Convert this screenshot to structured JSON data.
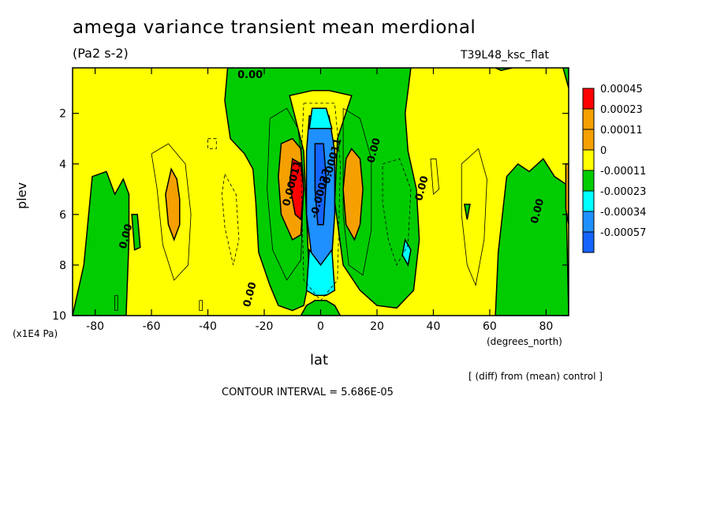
{
  "chart_data": {
    "type": "heatmap",
    "title": "amega variance transient mean merdional",
    "units": "(Pa2 s-2)",
    "run_label": "T39L48_ksc_flat",
    "xlabel": "lat",
    "xunits": "(degrees_north)",
    "ylabel": "plev",
    "yunits": "(x1E4 Pa)",
    "xlim": [
      -88,
      88
    ],
    "ylim": [
      10,
      0.2
    ],
    "x_ticks": [
      -80,
      -60,
      -40,
      -20,
      0,
      20,
      40,
      60,
      80
    ],
    "y_ticks": [
      2,
      4,
      6,
      8,
      10
    ],
    "x_tick_labels": [
      "-80",
      "-60",
      "-40",
      "-20",
      "0",
      "20",
      "40",
      "60",
      "80"
    ],
    "y_tick_labels": [
      "2",
      "4",
      "6",
      "8",
      "10"
    ],
    "legend": {
      "placement": "right",
      "levels": [
        "0.00045",
        "0.00023",
        "0.00011",
        "0",
        "-0.00011",
        "-0.00023",
        "-0.00034",
        "-0.00057"
      ],
      "colors": [
        "#ff0000",
        "#f5a000",
        "#f5a000",
        "#ffff00",
        "#00cc00",
        "#00ffff",
        "#1e90ff",
        "#1464ff"
      ]
    },
    "contour_labels": [
      {
        "text": "0.00",
        "lat": -25,
        "plev": 0.6
      },
      {
        "text": "0.00",
        "lat": -68,
        "plev": 6.9
      },
      {
        "text": "0.00",
        "lat": -24,
        "plev": 9.2
      },
      {
        "text": "0.00",
        "lat": 20,
        "plev": 3.5
      },
      {
        "text": "0.00",
        "lat": 37,
        "plev": 5.0
      },
      {
        "text": "0.00",
        "lat": 78,
        "plev": 5.9
      },
      {
        "text": "0.00011",
        "lat": -9,
        "plev": 4.8
      },
      {
        "text": "-0.00011",
        "lat": 5,
        "plev": 4.0
      },
      {
        "text": "-0.00023",
        "lat": 1,
        "plev": 5.2
      }
    ],
    "footnote": "[ (diff) from (mean) control ]",
    "contour_interval": "CONTOUR INTERVAL = 5.686E-05",
    "colors": {
      "yellow": "#ffff00",
      "green": "#00cc00",
      "orange": "#f5a000",
      "red": "#ff0000",
      "cyan": "#00ffff",
      "blue": "#1e90ff",
      "darkblue": "#1464ff"
    }
  }
}
